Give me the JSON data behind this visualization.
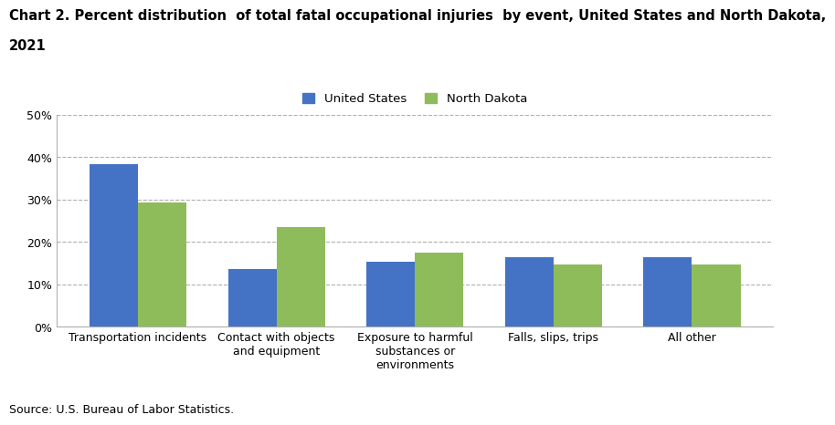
{
  "title_line1": "Chart 2. Percent distribution  of total fatal occupational injuries  by event, United States and North Dakota,",
  "title_line2": "2021",
  "categories": [
    "Transportation incidents",
    "Contact with objects\nand equipment",
    "Exposure to harmful\nsubstances or\nenvironments",
    "Falls, slips, trips",
    "All other"
  ],
  "us_values": [
    38.3,
    13.7,
    15.3,
    16.5,
    16.5
  ],
  "nd_values": [
    29.4,
    23.5,
    17.6,
    14.7,
    14.7
  ],
  "us_color": "#4472c4",
  "nd_color": "#8fbc5a",
  "us_label": "United States",
  "nd_label": "North Dakota",
  "ylim": [
    0,
    50
  ],
  "yticks": [
    0,
    10,
    20,
    30,
    40,
    50
  ],
  "ytick_labels": [
    "0%",
    "10%",
    "20%",
    "30%",
    "40%",
    "50%"
  ],
  "source": "Source: U.S. Bureau of Labor Statistics.",
  "title_fontsize": 10.5,
  "legend_fontsize": 9.5,
  "tick_fontsize": 9,
  "source_fontsize": 9,
  "bar_width": 0.35,
  "background_color": "#ffffff",
  "grid_color": "#b0b0b0",
  "spine_color": "#b0b0b0"
}
